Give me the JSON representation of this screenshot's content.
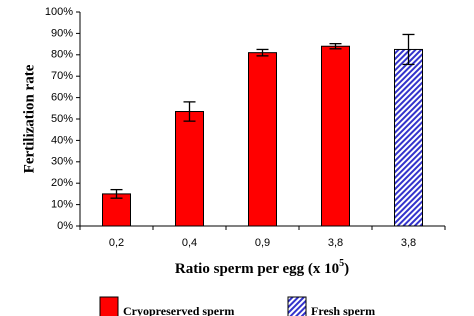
{
  "chart_data": {
    "type": "bar",
    "y_label": "Fertilization rate",
    "x_label": {
      "text": "Ratio sperm per egg (x 10",
      "superscript": "5",
      "suffix": ")"
    },
    "categories": [
      "0,2",
      "0,4",
      "0,9",
      "3,8",
      "3,8"
    ],
    "series": [
      {
        "name": "Cryopreserved sperm",
        "color": "#ff0000",
        "values": [
          15,
          53.5,
          81,
          84,
          null
        ],
        "errors": [
          2,
          4.5,
          1.5,
          1.2,
          null
        ]
      },
      {
        "name": "Fresh sperm",
        "color": "#3333cc",
        "pattern": "hatch",
        "values": [
          null,
          null,
          null,
          null,
          82.5
        ],
        "errors": [
          null,
          null,
          null,
          null,
          7
        ]
      }
    ],
    "ylim": [
      0,
      100
    ],
    "yticks": [
      {
        "value": 0,
        "label": "0%"
      },
      {
        "value": 10,
        "label": "10%"
      },
      {
        "value": 20,
        "label": "20%"
      },
      {
        "value": 30,
        "label": "30%"
      },
      {
        "value": 40,
        "label": "40%"
      },
      {
        "value": 50,
        "label": "50%"
      },
      {
        "value": 60,
        "label": "60%"
      },
      {
        "value": 70,
        "label": "70%"
      },
      {
        "value": 80,
        "label": "80%"
      },
      {
        "value": 90,
        "label": "90%"
      },
      {
        "value": 100,
        "label": "100%"
      }
    ],
    "grid": false
  }
}
